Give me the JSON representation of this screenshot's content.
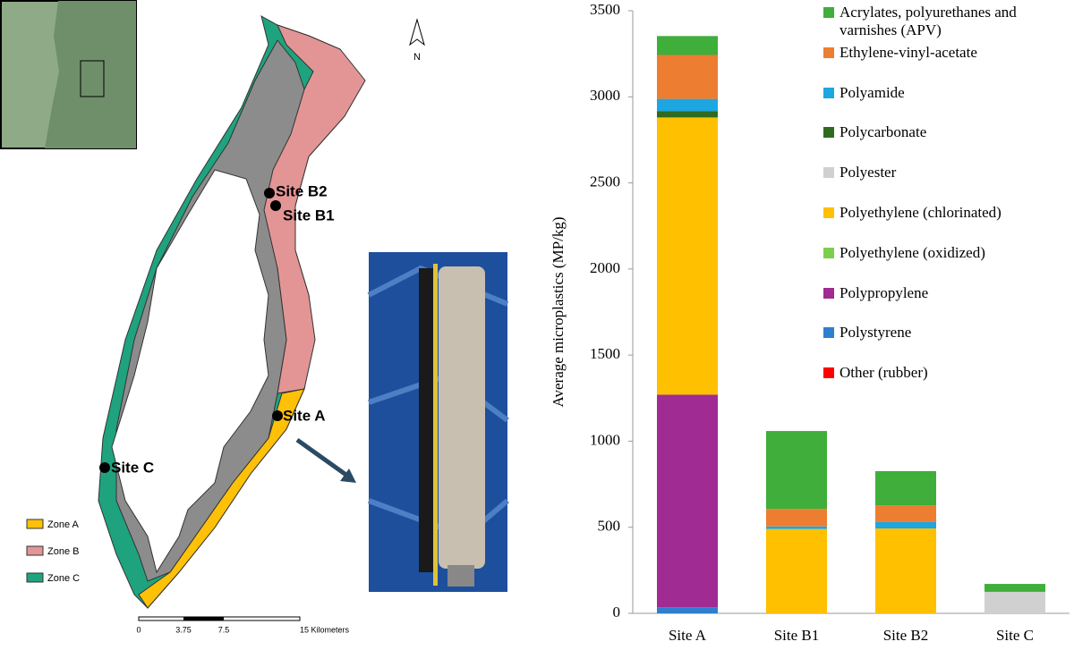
{
  "chart_data": {
    "type": "stacked-bar",
    "y_label": "Average microplastics (MP/kg)",
    "categories": [
      "Site A",
      "Site B1",
      "Site B2",
      "Site C"
    ],
    "ylim": [
      0,
      3500
    ],
    "yticks": [
      0,
      500,
      1000,
      1500,
      2000,
      2500,
      3000,
      3500
    ],
    "series": [
      {
        "name": "Other (rubber)",
        "color": "#ff0000",
        "values": [
          null,
          null,
          null,
          null
        ]
      },
      {
        "name": "Polystyrene",
        "color": "#2f7fd0",
        "values": [
          35,
          null,
          null,
          null
        ]
      },
      {
        "name": "Polypropylene",
        "color": "#a02b93",
        "values": [
          1235,
          null,
          null,
          null
        ]
      },
      {
        "name": "Polyethylene (oxidized)",
        "color": "#7ccf4e",
        "values": [
          null,
          null,
          null,
          null
        ]
      },
      {
        "name": "Polyethylene (chlorinated)",
        "color": "#ffc000",
        "values": [
          1610,
          490,
          493,
          null
        ]
      },
      {
        "name": "Polyester",
        "color": "#d0d0d0",
        "values": [
          null,
          null,
          null,
          125
        ]
      },
      {
        "name": "Polycarbonate",
        "color": "#2e6b1f",
        "values": [
          36,
          null,
          null,
          null
        ]
      },
      {
        "name": "Polyamide",
        "color": "#1ea6e0",
        "values": [
          72,
          15,
          37,
          null
        ]
      },
      {
        "name": "Ethylene-vinyl-acetate",
        "color": "#ed7d31",
        "values": [
          255,
          102,
          98,
          null
        ]
      },
      {
        "name": "Acrylates, polyurethanes and varnishes (APV)",
        "color": "#3fae3a",
        "values": [
          110,
          452,
          198,
          46
        ]
      }
    ]
  },
  "map": {
    "sites": [
      "Site B2",
      "Site B1",
      "Site A",
      "Site C"
    ],
    "zones": [
      "Zone A",
      "Zone B",
      "Zone C"
    ],
    "north": "N",
    "scale_labels": [
      "0",
      "3.75",
      "7.5",
      "15 Kilometers"
    ]
  }
}
